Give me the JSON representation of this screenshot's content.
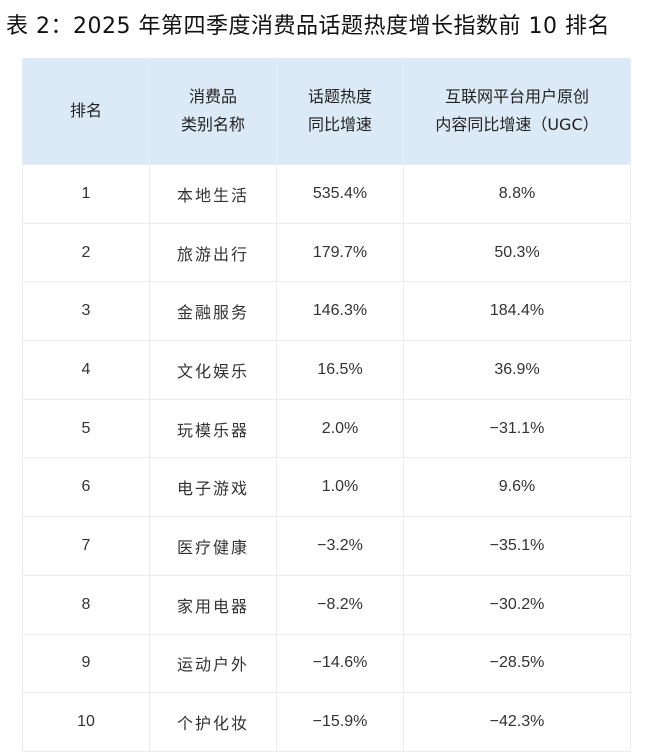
{
  "title": "表 2：2025 年第四季度消费品话题热度增长指数前 10 排名",
  "table": {
    "headers": [
      {
        "line1": "排名",
        "line2": ""
      },
      {
        "line1": "消费品",
        "line2": "类别名称"
      },
      {
        "line1": "话题热度",
        "line2": "同比增速"
      },
      {
        "line1": "互联网平台用户原创",
        "line2": "内容同比增速（UGC）"
      }
    ],
    "header_bg": "#dce9f7",
    "rows": [
      [
        "1",
        "本地生活",
        "535.4%",
        "8.8%"
      ],
      [
        "2",
        "旅游出行",
        "179.7%",
        "50.3%"
      ],
      [
        "3",
        "金融服务",
        "146.3%",
        "184.4%"
      ],
      [
        "4",
        "文化娱乐",
        "16.5%",
        "36.9%"
      ],
      [
        "5",
        "玩模乐器",
        "2.0%",
        "−31.1%"
      ],
      [
        "6",
        "电子游戏",
        "1.0%",
        "9.6%"
      ],
      [
        "7",
        "医疗健康",
        "−3.2%",
        "−35.1%"
      ],
      [
        "8",
        "家用电器",
        "−8.2%",
        "−30.2%"
      ],
      [
        "9",
        "运动户外",
        "−14.6%",
        "−28.5%"
      ],
      [
        "10",
        "个护化妆",
        "−15.9%",
        "−42.3%"
      ]
    ]
  }
}
